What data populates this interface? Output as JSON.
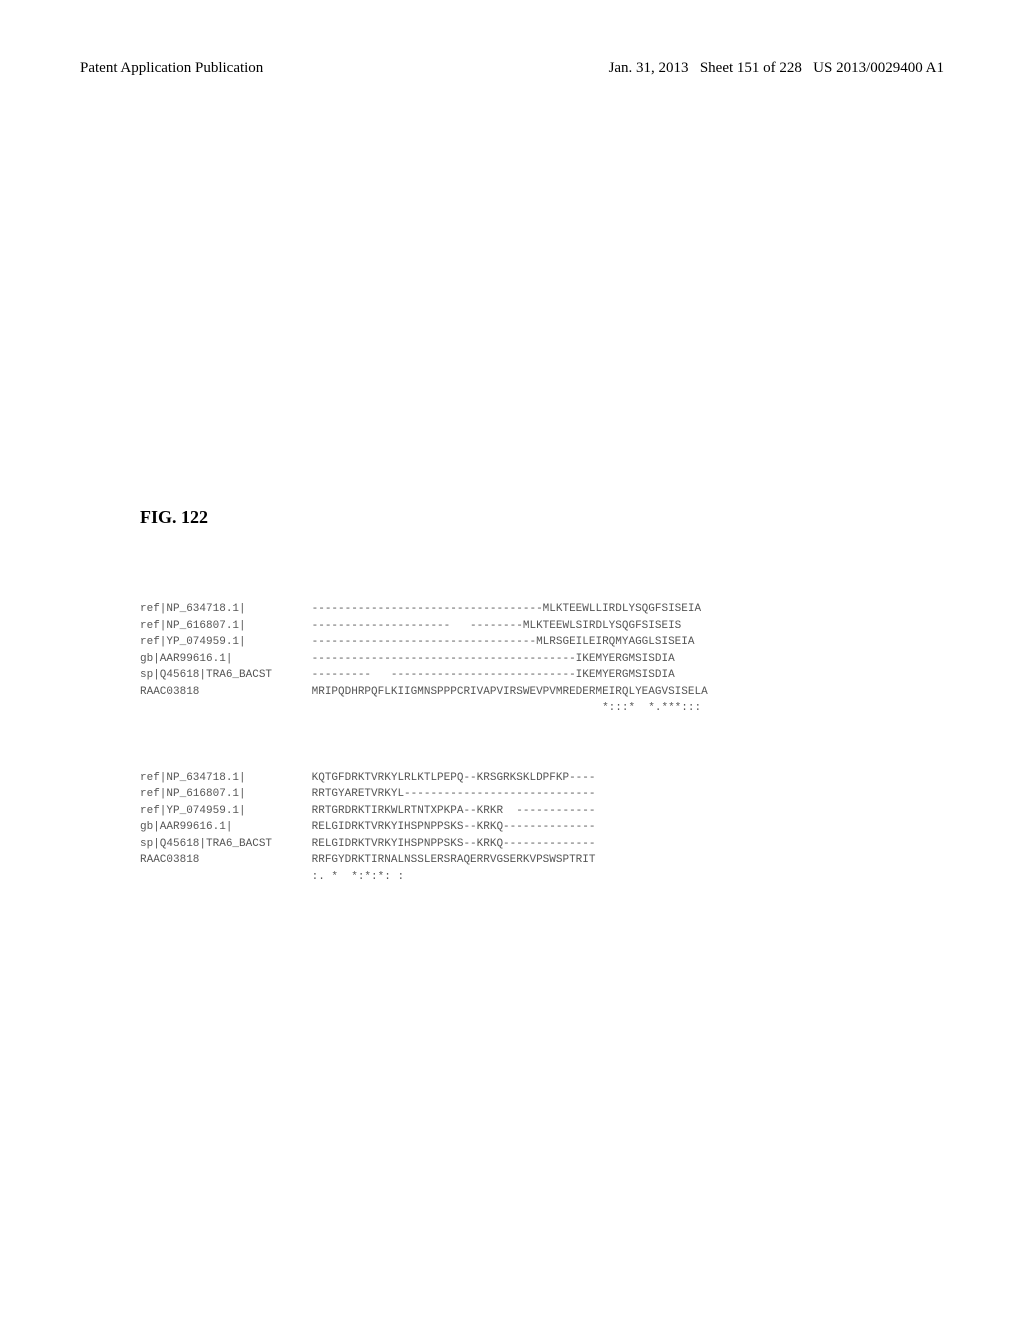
{
  "header": {
    "left": "Patent Application Publication",
    "right_date": "Jan. 31, 2013",
    "right_sheet": "Sheet 151 of 228",
    "right_pub": "US 2013/0029400 A1"
  },
  "figure_label": "FIG. 122",
  "alignment": {
    "block1": {
      "labels": [
        "ref|NP_634718.1|",
        "ref|NP_616807.1|",
        "ref|YP_074959.1|",
        "gb|AAR99616.1|",
        "sp|Q45618|TRA6_BACST",
        "RAAC03818"
      ],
      "sequences": [
        "-----------------------------------MLKTEEWLLIRDLYSQGFSISEIA",
        "---------------------   --------MLKTEEWLSIRDLYSQGFSISEIS",
        "----------------------------------MLRSGEILEIRQMYAGGLSISEIA",
        "----------------------------------------IKEMYERGMSISDIA",
        "---------   ----------------------------IKEMYERGMSISDIA",
        "MRIPQDHRPQFLKIIGMNSPPPCRIVAPVIRSWEVPVMREDERMEIRQLYEAGVSISELA"
      ],
      "consensus": "                                            *:::*  *.***:::"
    },
    "block2": {
      "labels": [
        "ref|NP_634718.1|",
        "ref|NP_616807.1|",
        "ref|YP_074959.1|",
        "gb|AAR99616.1|",
        "sp|Q45618|TRA6_BACST",
        "RAAC03818"
      ],
      "sequences": [
        "KQTGFDRKTVRKYLRLKTLPEPQ--KRSGRKSKLDPFKP----",
        "RRTGYARETVRKYL-----------------------------",
        "RRTGRDRKTIRKWLRTNTXPKPA--KRKR  ------------",
        "RELGIDRKTVRKYIHSPNPPSKS--KRKQ--------------",
        "RELGIDRKTVRKYIHSPNPPSKS--KRKQ--------------",
        "RRFGYDRKTIRNALNSSLERSRAQERRVGSERKVPSWSPTRIT"
      ],
      "consensus": ":. *  *:*:*: :"
    }
  }
}
